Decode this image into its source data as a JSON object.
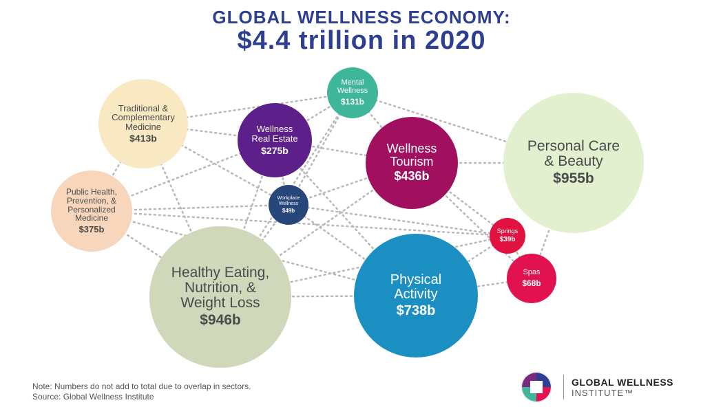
{
  "title_line1": "GLOBAL WELLNESS ECONOMY:",
  "title_line2": "$4.4 trillion in 2020",
  "colors": {
    "title": "#2e3f93",
    "link": "#b8b8b8"
  },
  "sectors": [
    {
      "key": "personal-care",
      "label": "Personal Care\n& Beauty",
      "value": "$955b",
      "amount": 955,
      "color": "#e3f0cf",
      "style": "light"
    },
    {
      "key": "healthy-eating",
      "label": "Healthy Eating,\nNutrition, &\nWeight Loss",
      "value": "$946b",
      "amount": 946,
      "color": "#cfd8bb",
      "style": "light"
    },
    {
      "key": "physical-activity",
      "label": "Physical\nActivity",
      "value": "$738b",
      "amount": 738,
      "color": "#1b8fc2",
      "style": "dark"
    },
    {
      "key": "wellness-tourism",
      "label": "Wellness\nTourism",
      "value": "$436b",
      "amount": 436,
      "color": "#a0105f",
      "style": "dark"
    },
    {
      "key": "traditional-medicine",
      "label": "Traditional &\nComplementary\nMedicine",
      "value": "$413b",
      "amount": 413,
      "color": "#f9e9c3",
      "style": "light"
    },
    {
      "key": "public-health",
      "label": "Public Health,\nPrevention, &\nPersonalized\nMedicine",
      "value": "$375b",
      "amount": 375,
      "color": "#f7d6bb",
      "style": "light"
    },
    {
      "key": "real-estate",
      "label": "Wellness\nReal Estate",
      "value": "$275b",
      "amount": 275,
      "color": "#5d1f8a",
      "style": "dark"
    },
    {
      "key": "mental-wellness",
      "label": "Mental\nWellness",
      "value": "$131b",
      "amount": 131,
      "color": "#3fb59a",
      "style": "dark"
    },
    {
      "key": "spas",
      "label": "Spas",
      "value": "$68b",
      "amount": 68,
      "color": "#e2114f",
      "style": "dark"
    },
    {
      "key": "workplace-wellness",
      "label": "Workplace\nWellness",
      "value": "$49b",
      "amount": 49,
      "color": "#27467a",
      "style": "dark"
    },
    {
      "key": "springs",
      "label": "Springs",
      "value": "$39b",
      "amount": 39,
      "color": "#e21240",
      "style": "dark"
    }
  ],
  "links": [
    [
      "traditional-medicine",
      "mental-wellness"
    ],
    [
      "traditional-medicine",
      "real-estate"
    ],
    [
      "traditional-medicine",
      "public-health"
    ],
    [
      "traditional-medicine",
      "workplace-wellness"
    ],
    [
      "traditional-medicine",
      "healthy-eating"
    ],
    [
      "public-health",
      "workplace-wellness"
    ],
    [
      "public-health",
      "springs"
    ],
    [
      "public-health",
      "real-estate"
    ],
    [
      "public-health",
      "physical-activity"
    ],
    [
      "public-health",
      "healthy-eating"
    ],
    [
      "real-estate",
      "mental-wellness"
    ],
    [
      "real-estate",
      "wellness-tourism"
    ],
    [
      "real-estate",
      "workplace-wellness"
    ],
    [
      "real-estate",
      "physical-activity"
    ],
    [
      "real-estate",
      "healthy-eating"
    ],
    [
      "mental-wellness",
      "wellness-tourism"
    ],
    [
      "mental-wellness",
      "personal-care"
    ],
    [
      "mental-wellness",
      "healthy-eating"
    ],
    [
      "mental-wellness",
      "workplace-wellness"
    ],
    [
      "wellness-tourism",
      "personal-care"
    ],
    [
      "wellness-tourism",
      "springs"
    ],
    [
      "wellness-tourism",
      "spas"
    ],
    [
      "wellness-tourism",
      "workplace-wellness"
    ],
    [
      "wellness-tourism",
      "healthy-eating"
    ],
    [
      "workplace-wellness",
      "physical-activity"
    ],
    [
      "workplace-wellness",
      "healthy-eating"
    ],
    [
      "workplace-wellness",
      "springs"
    ],
    [
      "healthy-eating",
      "physical-activity"
    ],
    [
      "healthy-eating",
      "springs"
    ],
    [
      "physical-activity",
      "spas"
    ],
    [
      "physical-activity",
      "springs"
    ],
    [
      "personal-care",
      "spas"
    ],
    [
      "springs",
      "spas"
    ]
  ],
  "note": "Note: Numbers do not add to total due to overlap in sectors.",
  "source": "Source: Global Wellness Institute",
  "logo": {
    "line1": "GLOBAL WELLNESS",
    "line2": "INSTITUTE™",
    "colors": [
      "#7b2b7f",
      "#2e3f93",
      "#3fb59a",
      "#e2114f"
    ]
  }
}
